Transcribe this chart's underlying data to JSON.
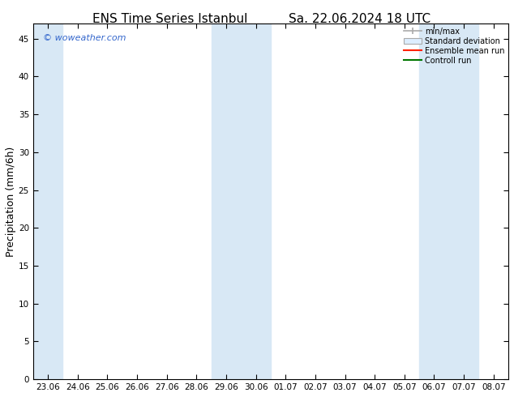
{
  "title_left": "ENS Time Series Istanbul",
  "title_right": "Sa. 22.06.2024 18 UTC",
  "ylabel": "Precipitation (mm/6h)",
  "watermark": "© woweather.com",
  "ylim": [
    0,
    47
  ],
  "yticks": [
    0,
    5,
    10,
    15,
    20,
    25,
    30,
    35,
    40,
    45
  ],
  "xtick_labels": [
    "23.06",
    "24.06",
    "25.06",
    "26.06",
    "27.06",
    "28.06",
    "29.06",
    "30.06",
    "01.07",
    "02.07",
    "03.07",
    "04.07",
    "05.07",
    "06.07",
    "07.07",
    "08.07"
  ],
  "num_xticks": 16,
  "shaded_bands_xranges": [
    [
      0,
      1
    ],
    [
      6,
      8
    ],
    [
      13,
      15
    ]
  ],
  "band_color": "#d8e8f5",
  "background_color": "#ffffff",
  "plot_bg_color": "#ffffff",
  "legend_items": [
    "min/max",
    "Standard deviation",
    "Ensemble mean run",
    "Controll run"
  ],
  "title_fontsize": 11,
  "tick_fontsize": 7.5,
  "ylabel_fontsize": 9,
  "watermark_color": "#3366cc",
  "minmax_color": "#aaaaaa",
  "std_facecolor": "#ddeeff",
  "std_edgecolor": "#aaaaaa",
  "ens_color": "#ff2200",
  "ctrl_color": "#007700"
}
